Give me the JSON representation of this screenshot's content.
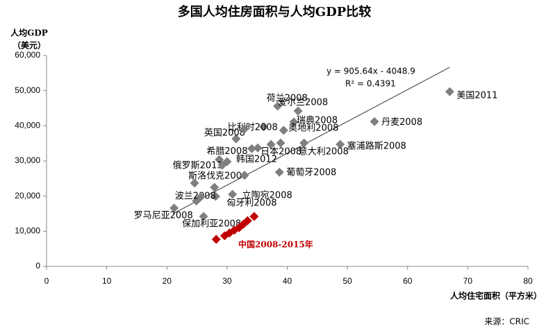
{
  "chart_data": {
    "type": "scatter",
    "title": "多国人均住房面积与人均GDP比较",
    "y_label": [
      "人均GDP",
      "（美元）"
    ],
    "x_label": "人均住宅面积（平方米）",
    "source": "来源：CRIC",
    "xlim": [
      0,
      80
    ],
    "xticks": [
      0,
      10,
      20,
      30,
      40,
      50,
      60,
      70,
      80
    ],
    "ylim": [
      0,
      60000
    ],
    "yticks": [
      0,
      {
        "value": 10000,
        "label": "10,000"
      },
      {
        "value": 20000,
        "label": "20,000"
      },
      {
        "value": 30000,
        "label": "30,000"
      },
      {
        "value": 40000,
        "label": "40,000"
      },
      {
        "value": 50000,
        "label": "50,000"
      },
      {
        "value": 60000,
        "label": "60,000"
      }
    ],
    "grid": false,
    "series": [
      {
        "color": "#7f7f7f",
        "x": [
          67.0,
          54.5,
          48.8,
          38.4,
          41.8,
          41.1,
          39.4,
          36.1,
          31.5,
          34.1,
          37.3,
          42.8,
          30.0,
          28.7,
          24.6,
          38.7,
          30.9,
          28.1,
          24.9,
          21.2,
          26.1,
          32.9,
          35.1,
          38.9,
          29.2,
          32.9,
          27.9,
          25.6
        ],
        "values": [
          49700,
          41200,
          34700,
          45600,
          44200,
          41100,
          38700,
          39700,
          36300,
          33500,
          34700,
          35100,
          29800,
          30400,
          23700,
          26800,
          20500,
          19900,
          18600,
          16600,
          14200,
          39100,
          33700,
          35100,
          28800,
          25900,
          22500,
          19700
        ],
        "labels": [
          "美国2011",
          "丹麦2008",
          "塞浦路斯2008",
          "荷兰2008",
          "爱尔兰2008",
          "瑞典2008",
          "奥地利2008",
          "比利时2008",
          "英国2008",
          "希腊2008",
          "日本2008",
          "意大利2008",
          "韩国2012",
          "俄罗斯2013",
          "斯洛伐克2008",
          "葡萄牙2008",
          "立陶宛2008",
          "匈牙利2008",
          "波兰2008",
          "罗马尼亚2008",
          "保加利亚2008",
          null,
          null,
          null,
          null,
          null,
          null,
          null
        ]
      },
      {
        "name": "中国2008-2015年",
        "color": "#c00000",
        "x": [
          28.2,
          29.6,
          30.4,
          31.2,
          32.0,
          32.7,
          33.4,
          34.5
        ],
        "values": [
          7700,
          8700,
          9500,
          10300,
          11000,
          12000,
          13000,
          14200
        ]
      }
    ],
    "trendline": {
      "slope": 905.64,
      "intercept": -4048.9,
      "xrange": [
        21,
        67
      ],
      "equation": "y = 905.64x - 4048.9",
      "r2": "R² = 0.4391"
    }
  }
}
